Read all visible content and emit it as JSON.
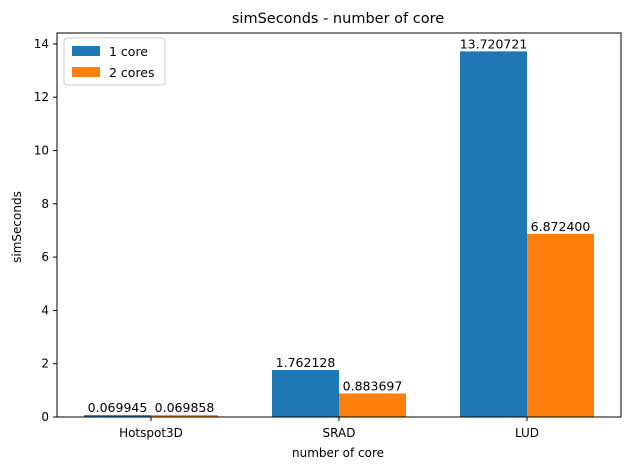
{
  "chart_data": {
    "type": "bar",
    "title": "simSeconds - number of core",
    "xlabel": "number of core",
    "ylabel": "simSeconds",
    "categories": [
      "Hotspot3D",
      "SRAD",
      "LUD"
    ],
    "series": [
      {
        "name": "1 core",
        "color": "#1f77b4",
        "values": [
          0.069945,
          1.762128,
          13.720721
        ],
        "labels": [
          "0.069945",
          "1.762128",
          "13.720721"
        ]
      },
      {
        "name": "2 cores",
        "color": "#ff7f0e",
        "values": [
          0.069858,
          0.883697,
          6.8724
        ],
        "labels": [
          "0.069858",
          "0.883697",
          "6.872400"
        ]
      }
    ],
    "ylim": [
      0,
      14.41
    ],
    "yticks": [
      0,
      2,
      4,
      6,
      8,
      10,
      12,
      14
    ],
    "grid": false,
    "legend_position": "top-left"
  }
}
